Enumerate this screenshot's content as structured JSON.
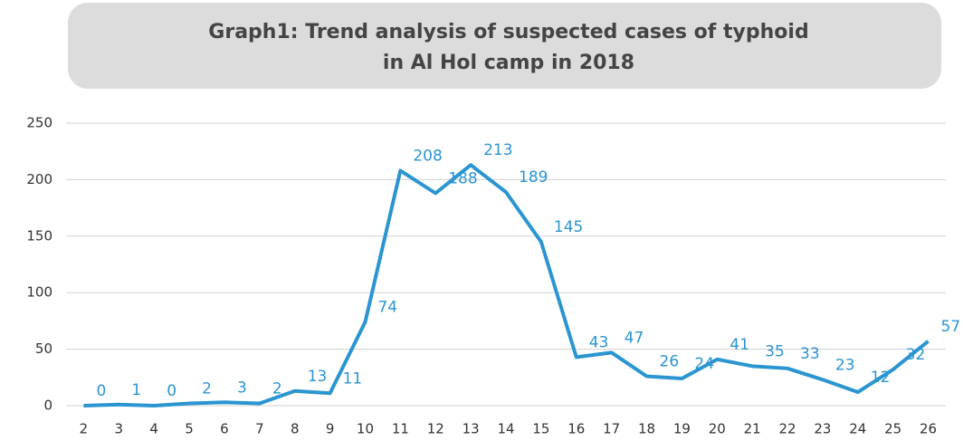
{
  "chart_data": {
    "type": "line",
    "title": "Graph1: Trend analysis of suspected cases of typhoid",
    "subtitle": "in Al Hol camp in 2018",
    "categories": [
      "2",
      "3",
      "4",
      "5",
      "6",
      "7",
      "8",
      "9",
      "10",
      "11",
      "12",
      "13",
      "14",
      "15",
      "16",
      "17",
      "18",
      "19",
      "20",
      "21",
      "22",
      "23",
      "24",
      "25",
      "26"
    ],
    "series": [
      {
        "color": "#2a95d0",
        "values": [
          0,
          1,
          0,
          2,
          3,
          2,
          13,
          11,
          74,
          208,
          188,
          213,
          189,
          145,
          43,
          47,
          26,
          24,
          41,
          35,
          33,
          23,
          12,
          32,
          57
        ]
      }
    ],
    "ylim": [
      0,
      250
    ],
    "yticks": [
      0,
      50,
      100,
      150,
      200,
      250
    ],
    "grid": true
  }
}
